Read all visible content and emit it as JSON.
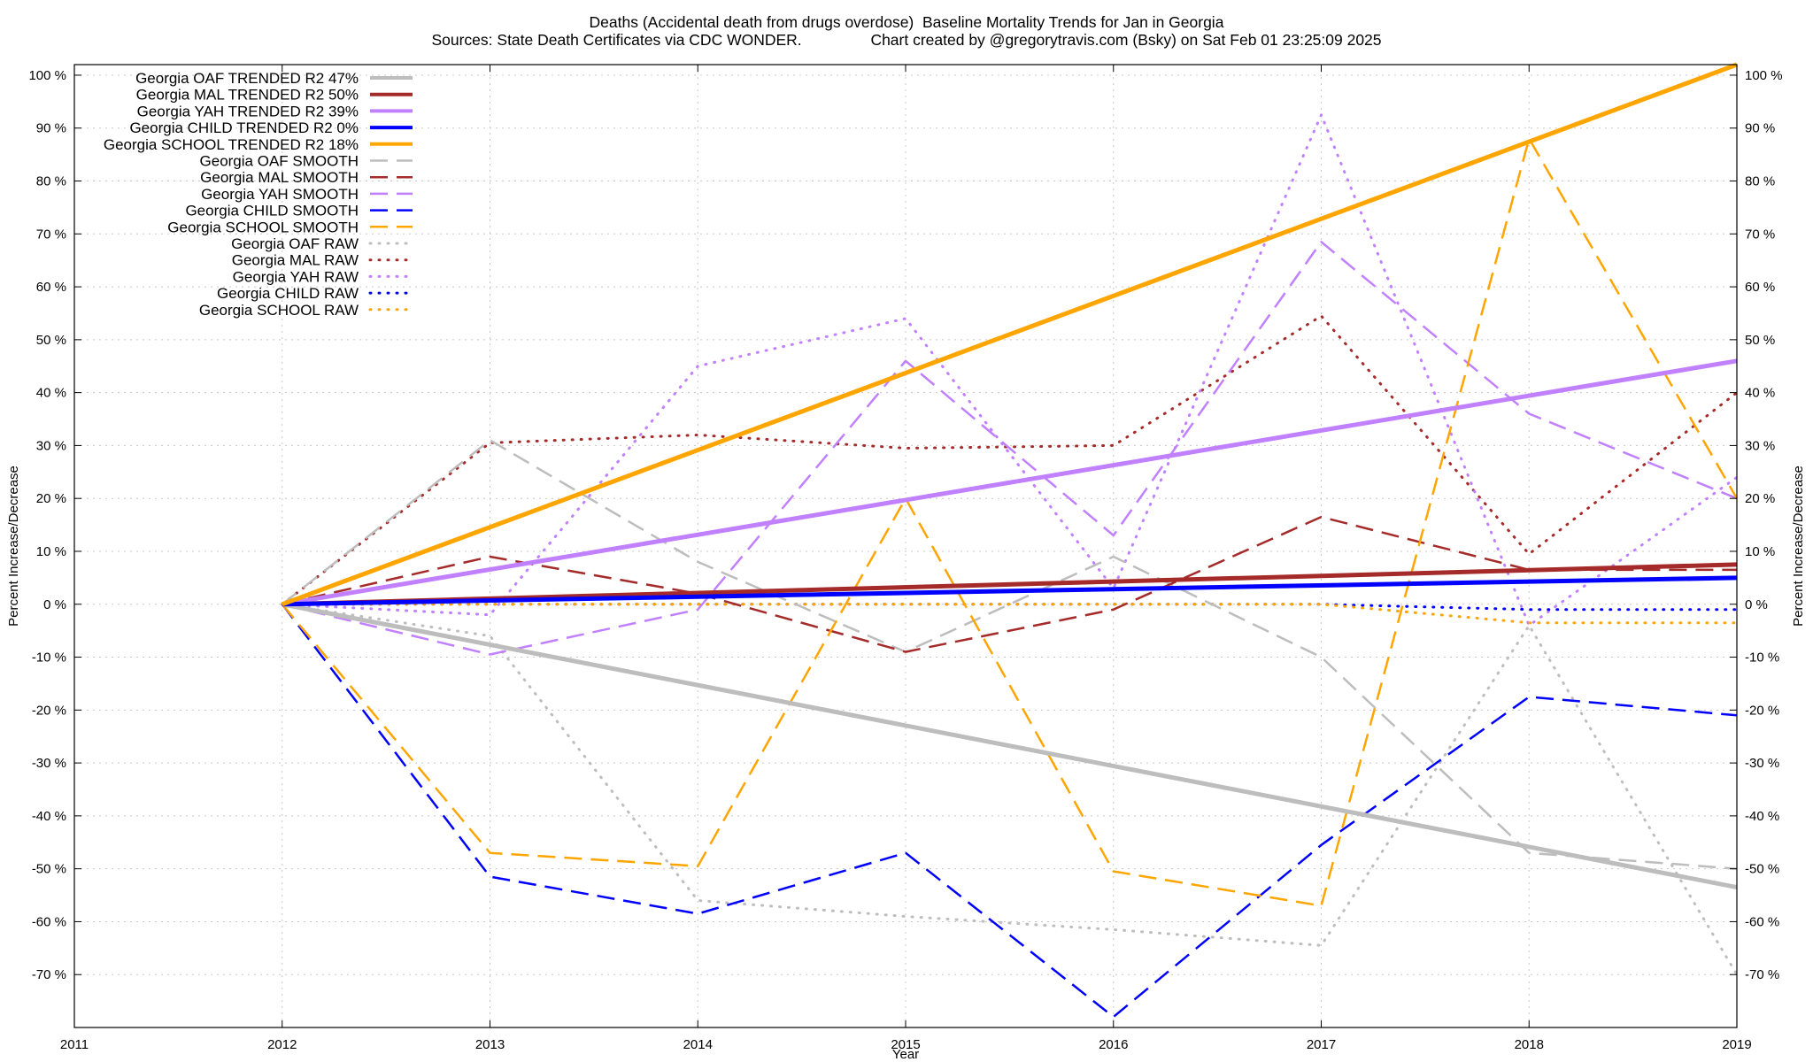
{
  "chart_data": {
    "type": "line",
    "title_line1": "Deaths (Accidental death from drugs overdose)  Baseline Mortality Trends for Jan in Georgia",
    "title_line2": "Sources: State Death Certificates via CDC WONDER.                Chart created by @gregorytravis.com (Bsky) on Sat Feb 01 23:25:09 2025",
    "xlabel": "Year",
    "ylabel": "Percent Increase/Decrease",
    "ylabel_right": "Percent Increase/Decrease",
    "xlim": [
      2011,
      2019
    ],
    "ylim": [
      -80,
      102
    ],
    "x_ticks": [
      "2011",
      "2012",
      "2013",
      "2014",
      "2015",
      "2016",
      "2017",
      "2018",
      "2019"
    ],
    "y_ticks": [
      "100 %",
      "90 %",
      "80 %",
      "70 %",
      "60 %",
      "50 %",
      "40 %",
      "30 %",
      "20 %",
      "10 %",
      "0 %",
      "-10 %",
      "-20 %",
      "-30 %",
      "-40 %",
      "-50 %",
      "-60 %",
      "-70 %"
    ],
    "y_tick_values": [
      100,
      90,
      80,
      70,
      60,
      50,
      40,
      30,
      20,
      10,
      0,
      -10,
      -20,
      -30,
      -40,
      -50,
      -60,
      -70
    ],
    "grid": true,
    "legend_position": "top-left",
    "series": [
      {
        "name": "Georgia OAF TRENDED R2  47%",
        "style": "solid",
        "color": "#bdbdbd",
        "x": [
          2012,
          2019
        ],
        "y": [
          0,
          -53.5
        ]
      },
      {
        "name": "Georgia MAL TRENDED R2  50%",
        "style": "solid",
        "color": "#a52a2a",
        "x": [
          2012,
          2019
        ],
        "y": [
          0,
          7.5
        ]
      },
      {
        "name": "Georgia YAH TRENDED R2  39%",
        "style": "solid",
        "color": "#c080ff",
        "x": [
          2012,
          2019
        ],
        "y": [
          0,
          46
        ]
      },
      {
        "name": "Georgia CHILD TRENDED R2   0%",
        "style": "solid",
        "color": "#0000ff",
        "x": [
          2012,
          2019
        ],
        "y": [
          0,
          5
        ]
      },
      {
        "name": "Georgia SCHOOL TRENDED R2  18%",
        "style": "solid",
        "color": "#ffa500",
        "x": [
          2012,
          2019
        ],
        "y": [
          0,
          102
        ]
      },
      {
        "name": "Georgia OAF SMOOTH",
        "style": "dashed",
        "color": "#bdbdbd",
        "x": [
          2012,
          2013,
          2014,
          2015,
          2016,
          2017,
          2018,
          2019
        ],
        "y": [
          0,
          31,
          8,
          -9,
          9,
          -10,
          -47,
          -50
        ]
      },
      {
        "name": "Georgia MAL SMOOTH",
        "style": "dashed",
        "color": "#a52a2a",
        "x": [
          2012,
          2013,
          2014,
          2015,
          2016,
          2017,
          2018,
          2019
        ],
        "y": [
          0,
          9,
          2,
          -9,
          -1,
          16.5,
          6.5,
          6.5
        ]
      },
      {
        "name": "Georgia YAH SMOOTH",
        "style": "dashed",
        "color": "#c080ff",
        "x": [
          2012,
          2013,
          2014,
          2015,
          2016,
          2017,
          2018,
          2019
        ],
        "y": [
          0,
          -9.5,
          -1,
          46,
          13,
          68.5,
          36,
          20
        ]
      },
      {
        "name": "Georgia CHILD SMOOTH",
        "style": "dashed",
        "color": "#0000ff",
        "x": [
          2012,
          2013,
          2014,
          2015,
          2016,
          2017,
          2018,
          2019
        ],
        "y": [
          0,
          -51.5,
          -58.5,
          -47,
          -78,
          -45.5,
          -17.5,
          -21
        ]
      },
      {
        "name": "Georgia SCHOOL SMOOTH",
        "style": "dashed",
        "color": "#ffa500",
        "x": [
          2012,
          2013,
          2014,
          2015,
          2016,
          2017,
          2018,
          2019
        ],
        "y": [
          0,
          -47,
          -49.5,
          20,
          -50.5,
          -57,
          88,
          20
        ]
      },
      {
        "name": "Georgia OAF RAW",
        "style": "dotted",
        "color": "#bdbdbd",
        "x": [
          2012,
          2013,
          2014,
          2015,
          2016,
          2017,
          2018,
          2019
        ],
        "y": [
          0,
          -6,
          -56,
          -59,
          -61.5,
          -64.5,
          -4,
          -70
        ]
      },
      {
        "name": "Georgia MAL RAW",
        "style": "dotted",
        "color": "#a52a2a",
        "x": [
          2012,
          2013,
          2014,
          2015,
          2016,
          2017,
          2018,
          2019
        ],
        "y": [
          0,
          30.5,
          32,
          29.5,
          30,
          54.5,
          9.5,
          40
        ]
      },
      {
        "name": "Georgia YAH RAW",
        "style": "dotted",
        "color": "#c080ff",
        "x": [
          2012,
          2013,
          2014,
          2015,
          2016,
          2017,
          2018,
          2019
        ],
        "y": [
          0,
          -2,
          45,
          54,
          3,
          92.5,
          -4,
          24
        ]
      },
      {
        "name": "Georgia CHILD RAW",
        "style": "dotted",
        "color": "#0000ff",
        "x": [
          2012,
          2013,
          2014,
          2015,
          2016,
          2017,
          2018,
          2019
        ],
        "y": [
          0,
          0,
          0,
          0,
          0,
          0,
          -1,
          -1
        ]
      },
      {
        "name": "Georgia SCHOOL RAW",
        "style": "dotted",
        "color": "#ffa500",
        "x": [
          2012,
          2013,
          2014,
          2015,
          2016,
          2017,
          2018,
          2019
        ],
        "y": [
          0,
          0,
          0,
          0,
          0,
          0,
          -3.5,
          -3.5
        ]
      }
    ]
  }
}
